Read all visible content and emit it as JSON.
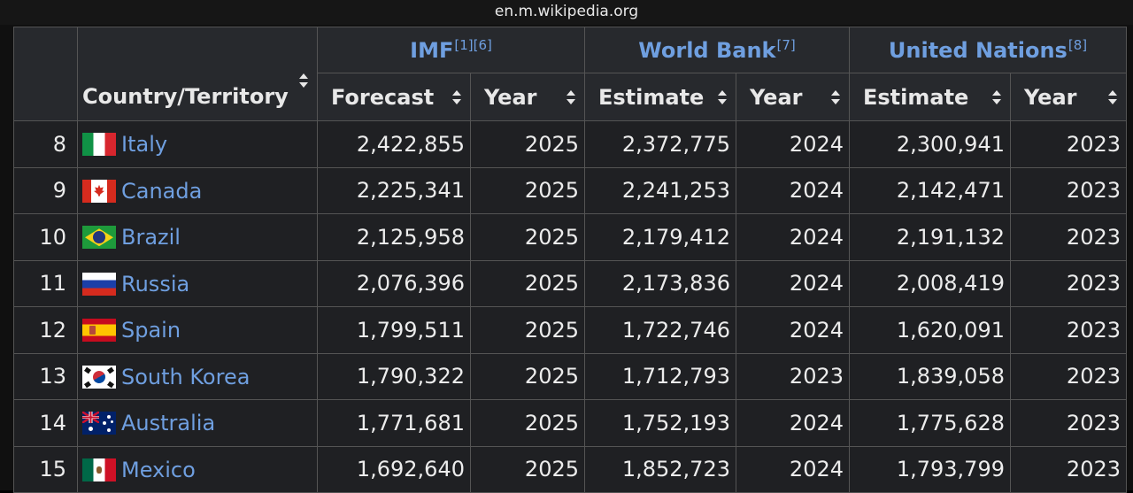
{
  "browser": {
    "url": "en.m.wikipedia.org"
  },
  "table": {
    "header": {
      "country_col": "Country/Territory",
      "groups": [
        {
          "label": "IMF",
          "refs": "[1][6]"
        },
        {
          "label": "World Bank",
          "refs": "[7]"
        },
        {
          "label": "United Nations",
          "refs": "[8]"
        }
      ],
      "subheaders": [
        "Forecast",
        "Year",
        "Estimate",
        "Year",
        "Estimate",
        "Year"
      ]
    },
    "rows": [
      {
        "rank": "8",
        "country": "Italy",
        "flag": "italy-flag-icon",
        "imf": "2,422,855",
        "imf_year": "2025",
        "wb": "2,372,775",
        "wb_year": "2024",
        "un": "2,300,941",
        "un_year": "2023"
      },
      {
        "rank": "9",
        "country": "Canada",
        "flag": "canada-flag-icon",
        "imf": "2,225,341",
        "imf_year": "2025",
        "wb": "2,241,253",
        "wb_year": "2024",
        "un": "2,142,471",
        "un_year": "2023"
      },
      {
        "rank": "10",
        "country": "Brazil",
        "flag": "brazil-flag-icon",
        "imf": "2,125,958",
        "imf_year": "2025",
        "wb": "2,179,412",
        "wb_year": "2024",
        "un": "2,191,132",
        "un_year": "2023"
      },
      {
        "rank": "11",
        "country": "Russia",
        "flag": "russia-flag-icon",
        "imf": "2,076,396",
        "imf_year": "2025",
        "wb": "2,173,836",
        "wb_year": "2024",
        "un": "2,008,419",
        "un_year": "2023"
      },
      {
        "rank": "12",
        "country": "Spain",
        "flag": "spain-flag-icon",
        "imf": "1,799,511",
        "imf_year": "2025",
        "wb": "1,722,746",
        "wb_year": "2024",
        "un": "1,620,091",
        "un_year": "2023"
      },
      {
        "rank": "13",
        "country": "South Korea",
        "flag": "south-korea-flag-icon",
        "imf": "1,790,322",
        "imf_year": "2025",
        "wb": "1,712,793",
        "wb_year": "2023",
        "un": "1,839,058",
        "un_year": "2023"
      },
      {
        "rank": "14",
        "country": "Australia",
        "flag": "australia-flag-icon",
        "imf": "1,771,681",
        "imf_year": "2025",
        "wb": "1,752,193",
        "wb_year": "2024",
        "un": "1,775,628",
        "un_year": "2023"
      },
      {
        "rank": "15",
        "country": "Mexico",
        "flag": "mexico-flag-icon",
        "imf": "1,692,640",
        "imf_year": "2025",
        "wb": "1,852,723",
        "wb_year": "2024",
        "un": "1,793,799",
        "un_year": "2023"
      }
    ]
  },
  "colors": {
    "link": "#6f9fe0",
    "header_bg": "#27292d",
    "cell_bg": "#1f2023",
    "border": "#545454"
  }
}
